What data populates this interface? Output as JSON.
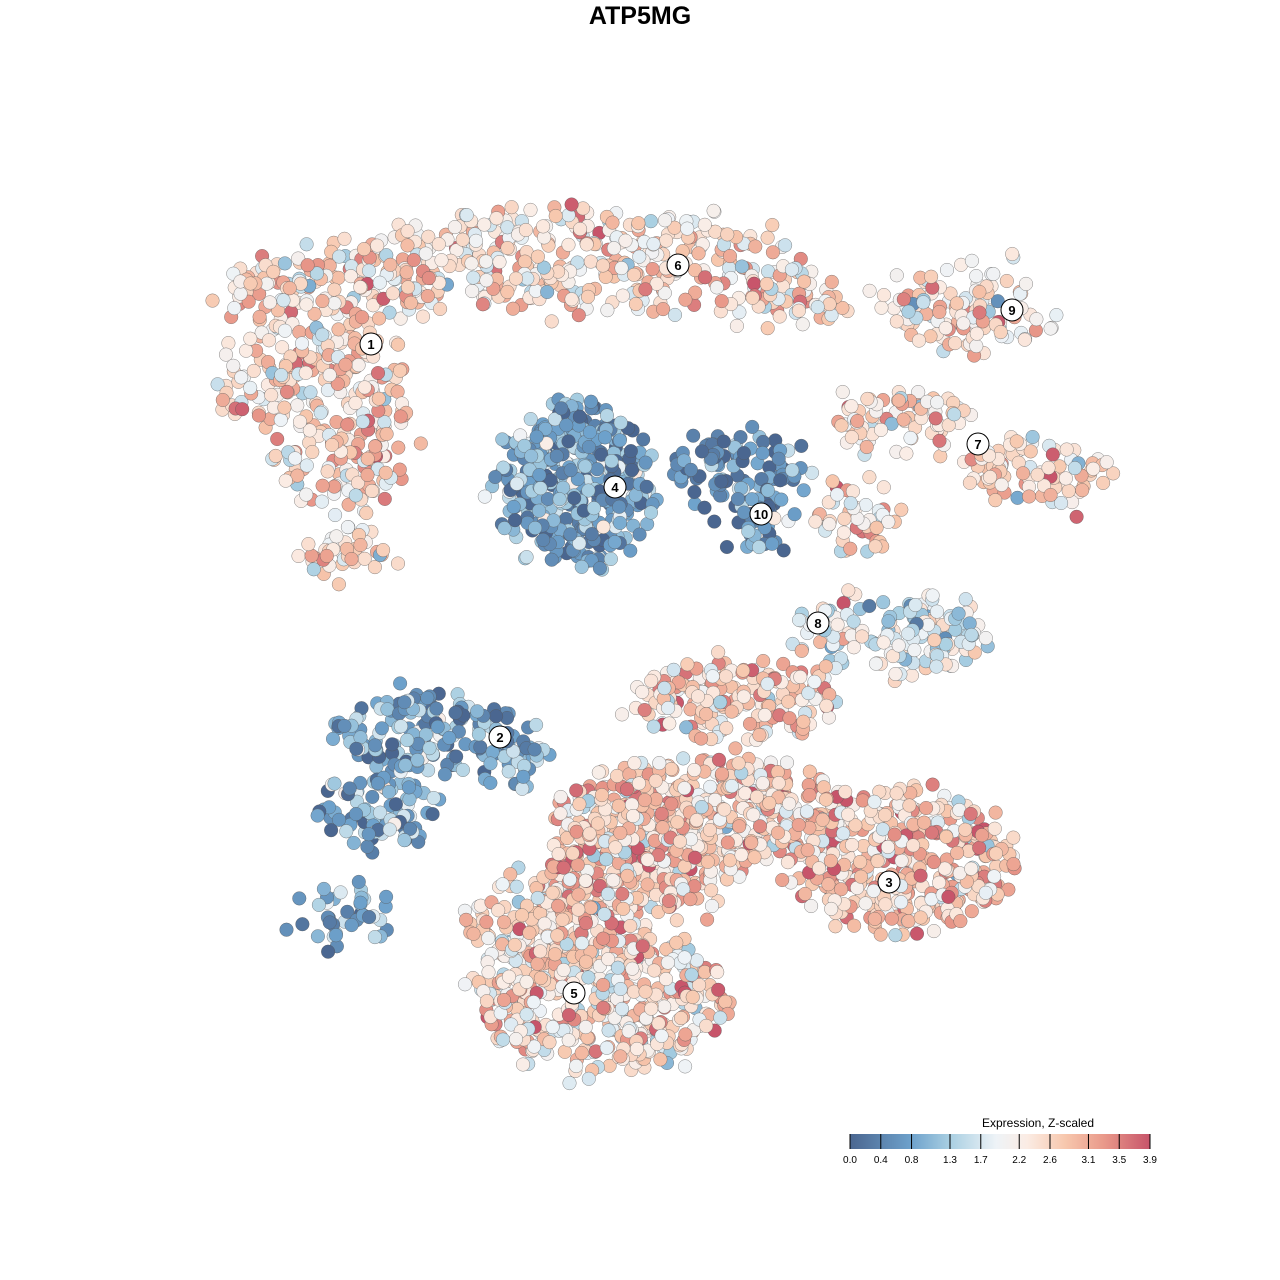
{
  "chart_data": {
    "type": "scatter",
    "title": "ATP5MG",
    "xlabel": "",
    "ylabel": "",
    "grid": false,
    "axes_visible": false,
    "xlim": [
      -46,
      47
    ],
    "ylim": [
      -46,
      46
    ],
    "color_scale": {
      "title": "Expression, Z-scaled",
      "min": 0.0,
      "max": 3.9,
      "ticks": [
        "0.0",
        "0.4",
        "0.8",
        "1.3",
        "1.7",
        "2.2",
        "2.6",
        "3.1",
        "3.5",
        "3.9"
      ],
      "tick_values": [
        0.0,
        0.4,
        0.8,
        1.3,
        1.7,
        2.2,
        2.6,
        3.1,
        3.5,
        3.9
      ],
      "stops": [
        {
          "value": 0.0,
          "color": "#4a6690"
        },
        {
          "value": 0.8,
          "color": "#6ea2cc"
        },
        {
          "value": 1.3,
          "color": "#a9cfe2"
        },
        {
          "value": 1.9,
          "color": "#eef3f7"
        },
        {
          "value": 2.3,
          "color": "#fbece4"
        },
        {
          "value": 2.8,
          "color": "#f7c7ad"
        },
        {
          "value": 3.3,
          "color": "#e9998a"
        },
        {
          "value": 3.9,
          "color": "#c7546a"
        }
      ],
      "legend_position": "bottom-right"
    },
    "clusters": [
      {
        "label": "1",
        "label_pos": [
          -29.4,
          29.6
        ],
        "mean_expression": 2.5,
        "blobs": [
          [
            -33.5,
            34,
            11,
            5,
            180
          ],
          [
            -32.5,
            22,
            7,
            9,
            220
          ],
          [
            -41.5,
            26,
            4,
            4,
            40
          ],
          [
            -31.5,
            8.5,
            4,
            2,
            40
          ]
        ]
      },
      {
        "label": "2",
        "label_pos": [
          -16.5,
          -9.7
        ],
        "mean_expression": 0.8,
        "blobs": [
          [
            -24.5,
            -9,
            9,
            4,
            150
          ],
          [
            -28.5,
            -17,
            5.5,
            3.5,
            90
          ],
          [
            -14.5,
            -12,
            3,
            3,
            40
          ],
          [
            -32.5,
            -28,
            5,
            2.5,
            40
          ]
        ]
      },
      {
        "label": "3",
        "label_pos": [
          22.4,
          -24.2
        ],
        "mean_expression": 2.7,
        "blobs": [
          [
            3.5,
            -17,
            15,
            5,
            400
          ],
          [
            23.5,
            -22,
            11,
            7,
            400
          ],
          [
            -2.5,
            -23,
            10,
            5,
            250
          ],
          [
            6.5,
            -6,
            10,
            4,
            180
          ]
        ]
      },
      {
        "label": "4",
        "label_pos": [
          -5,
          15.3
        ],
        "mean_expression": 0.8,
        "blobs": [
          [
            -9,
            15.5,
            7.5,
            8,
            400
          ]
        ]
      },
      {
        "label": "5",
        "label_pos": [
          -9.1,
          -35.3
        ],
        "mean_expression": 2.5,
        "blobs": [
          [
            -6.5,
            -36,
            13,
            7,
            450
          ],
          [
            -13.5,
            -28,
            6,
            4,
            120
          ]
        ]
      },
      {
        "label": "6",
        "label_pos": [
          1.3,
          37.5
        ],
        "mean_expression": 2.4,
        "blobs": [
          [
            -8.5,
            38,
            22,
            5,
            350
          ],
          [
            11.5,
            34,
            6,
            3,
            60
          ]
        ]
      },
      {
        "label": "7",
        "label_pos": [
          31.3,
          19.6
        ],
        "mean_expression": 2.5,
        "blobs": [
          [
            23.5,
            22,
            7,
            3,
            80
          ],
          [
            37.5,
            17,
            7,
            3,
            90
          ],
          [
            19.5,
            12,
            4,
            4,
            50
          ]
        ]
      },
      {
        "label": "8",
        "label_pos": [
          15.3,
          1.7
        ],
        "mean_expression": 1.8,
        "blobs": [
          [
            25.5,
            0.5,
            6,
            4,
            120
          ],
          [
            16.5,
            1,
            4,
            4,
            40
          ]
        ]
      },
      {
        "label": "9",
        "label_pos": [
          34.7,
          33
        ],
        "mean_expression": 2.4,
        "blobs": [
          [
            30.5,
            33,
            9,
            4,
            120
          ]
        ]
      },
      {
        "label": "10",
        "label_pos": [
          9.6,
          12.6
        ],
        "mean_expression": 0.5,
        "blobs": [
          [
            7.5,
            17,
            7,
            4,
            100
          ],
          [
            9.5,
            12,
            2.5,
            3,
            40
          ]
        ]
      }
    ]
  }
}
